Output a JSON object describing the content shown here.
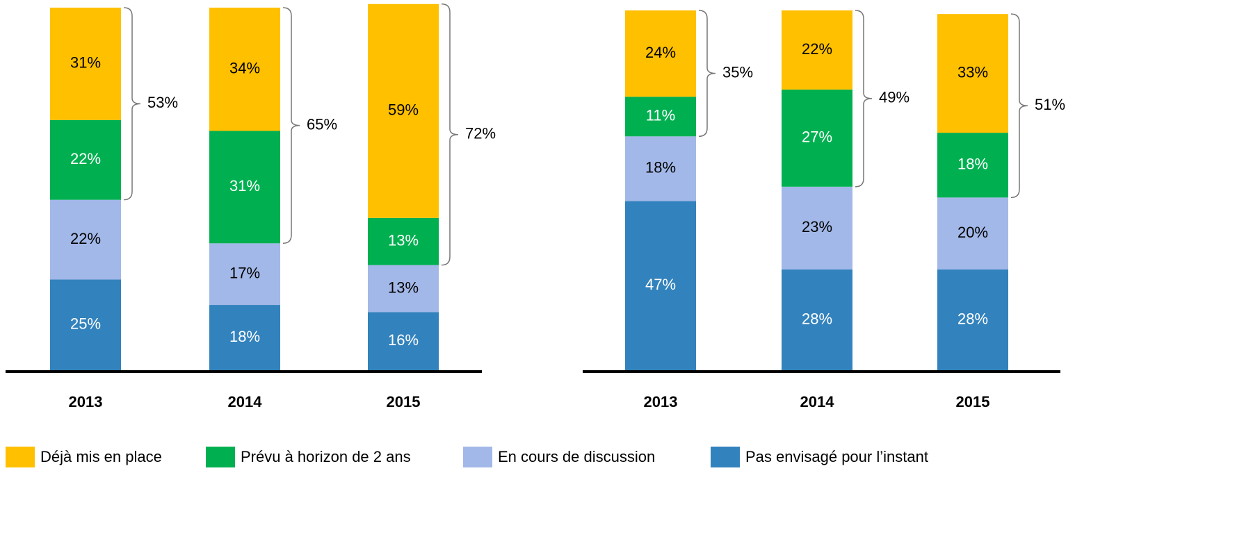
{
  "chart_data": [
    {
      "type": "stacked_bar",
      "categories": [
        "2013",
        "2014",
        "2015"
      ],
      "series": [
        {
          "name": "Déjà mis en place",
          "color": "#FFC000",
          "values": [
            31,
            34,
            59
          ],
          "value_labels": [
            "31%",
            "34%",
            "59%"
          ]
        },
        {
          "name": "Prévu à horizon de 2 ans",
          "color": "#00B050",
          "values": [
            22,
            31,
            13
          ],
          "value_labels": [
            "22%",
            "31%",
            "13%"
          ]
        },
        {
          "name": "En cours de discussion",
          "color": "#A2B8E8",
          "values": [
            22,
            17,
            13
          ],
          "value_labels": [
            "22%",
            "17%",
            "13%"
          ]
        },
        {
          "name": "Pas envisagé pour l’instant",
          "color": "#3282BD",
          "values": [
            25,
            18,
            16
          ],
          "value_labels": [
            "25%",
            "18%",
            "16%"
          ]
        }
      ],
      "bracket_values": [
        53,
        65,
        72
      ],
      "bracket_labels": [
        "53%",
        "65%",
        "72%"
      ]
    },
    {
      "type": "stacked_bar",
      "categories": [
        "2013",
        "2014",
        "2015"
      ],
      "series": [
        {
          "values": [
            24,
            22,
            33
          ],
          "value_labels": [
            "24%",
            "22%",
            "33%"
          ]
        },
        {
          "values": [
            11,
            27,
            18
          ],
          "value_labels": [
            "11%",
            "27%",
            "18%"
          ]
        },
        {
          "values": [
            18,
            23,
            20
          ],
          "value_labels": [
            "18%",
            "23%",
            "20%"
          ]
        },
        {
          "values": [
            47,
            28,
            28
          ],
          "value_labels": [
            "47%",
            "28%",
            "28%"
          ]
        }
      ],
      "bracket_values": [
        35,
        49,
        51
      ],
      "bracket_labels": [
        "35%",
        "49%",
        "51%"
      ]
    }
  ]
}
